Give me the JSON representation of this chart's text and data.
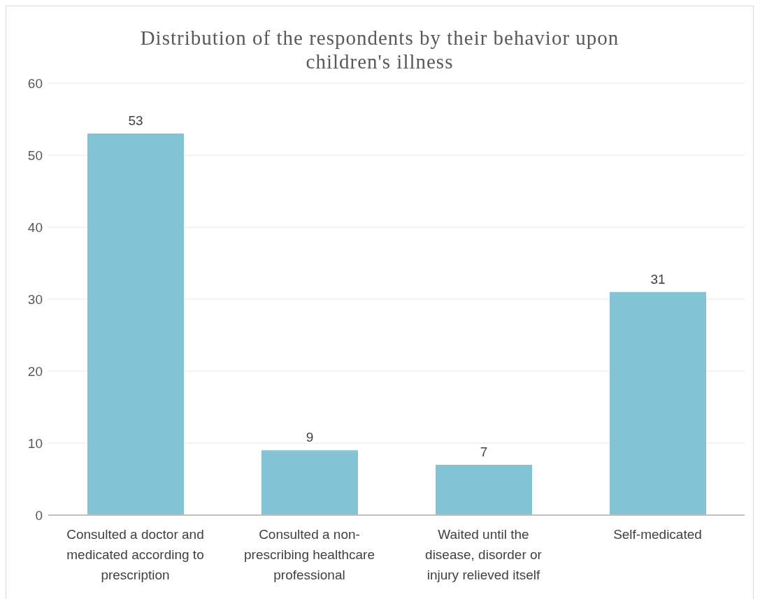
{
  "chart_data": {
    "type": "bar",
    "title": "Distribution of the respondents by their behavior upon children's illness",
    "categories": [
      "Consulted a doctor and medicated according to prescription",
      "Consulted a non-prescribing healthcare professional",
      "Waited until the disease, disorder or injury relieved itself",
      "Self-medicated"
    ],
    "values": [
      53,
      9,
      7,
      31
    ],
    "color": "#82c4d4",
    "ylim": [
      0,
      60
    ],
    "yticks": [
      0,
      10,
      20,
      30,
      40,
      50,
      60
    ],
    "grid": "y",
    "data_labels": true,
    "legend": false
  }
}
